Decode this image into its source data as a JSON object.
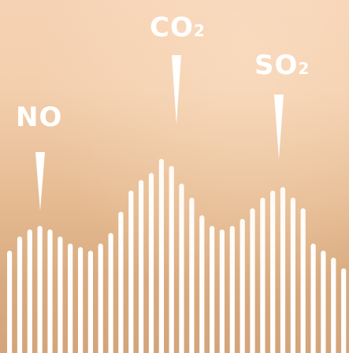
{
  "labels": {
    "no": {
      "text": "NO"
    },
    "co2": {
      "main": "CO",
      "sub": "2"
    },
    "so2": {
      "main": "SO",
      "sub": "2"
    }
  },
  "colors": {
    "bars": "#ffffff",
    "background_top": "#f6d2b4",
    "background_bottom": "#d4a47a"
  },
  "bar_levels": [
    0.29,
    0.33,
    0.35,
    0.36,
    0.35,
    0.33,
    0.31,
    0.3,
    0.29,
    0.31,
    0.34,
    0.4,
    0.46,
    0.49,
    0.51,
    0.55,
    0.53,
    0.48,
    0.44,
    0.39,
    0.36,
    0.35,
    0.36,
    0.38,
    0.41,
    0.44,
    0.46,
    0.47,
    0.44,
    0.41,
    0.31,
    0.29,
    0.27,
    0.24
  ]
}
